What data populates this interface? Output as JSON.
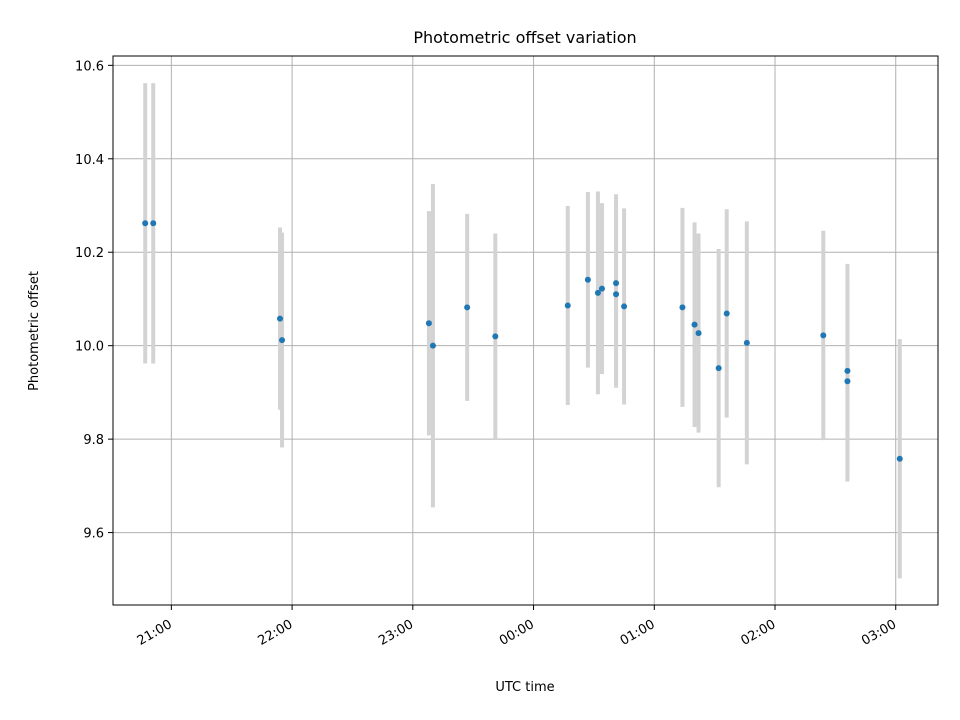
{
  "chart_data": {
    "type": "scatter",
    "title": "Photometric offset variation",
    "xlabel": "UTC time",
    "ylabel": "Photometric offset",
    "x_ticks": [
      "21:00",
      "22:00",
      "23:00",
      "00:00",
      "01:00",
      "02:00",
      "03:00"
    ],
    "y_ticks": [
      "9.6",
      "9.8",
      "10.0",
      "10.2",
      "10.4",
      "10.6"
    ],
    "xlim": [
      "20:31",
      "03:21"
    ],
    "ylim": [
      9.445,
      10.62
    ],
    "grid": true,
    "colors": {
      "points": "#1f77b4",
      "error_bars": "#d3d3d3"
    },
    "points": [
      {
        "x": "20:47",
        "y": 10.262,
        "err": 0.3
      },
      {
        "x": "20:51",
        "y": 10.262,
        "err": 0.3
      },
      {
        "x": "21:54",
        "y": 10.058,
        "err": 0.195
      },
      {
        "x": "21:55",
        "y": 10.012,
        "err": 0.23
      },
      {
        "x": "23:08",
        "y": 10.048,
        "err": 0.24
      },
      {
        "x": "23:10",
        "y": 10.0,
        "err": 0.346
      },
      {
        "x": "23:27",
        "y": 10.082,
        "err": 0.2
      },
      {
        "x": "23:41",
        "y": 10.02,
        "err": 0.22
      },
      {
        "x": "00:17",
        "y": 10.086,
        "err": 0.213
      },
      {
        "x": "00:27",
        "y": 10.141,
        "err": 0.188
      },
      {
        "x": "00:32",
        "y": 10.113,
        "err": 0.217
      },
      {
        "x": "00:34",
        "y": 10.122,
        "err": 0.183
      },
      {
        "x": "00:41",
        "y": 10.134,
        "err": 0.19
      },
      {
        "x": "00:41",
        "y": 10.11,
        "err": 0.2
      },
      {
        "x": "00:45",
        "y": 10.084,
        "err": 0.21
      },
      {
        "x": "01:14",
        "y": 10.082,
        "err": 0.213
      },
      {
        "x": "01:20",
        "y": 10.045,
        "err": 0.219
      },
      {
        "x": "01:22",
        "y": 10.027,
        "err": 0.213
      },
      {
        "x": "01:32",
        "y": 9.952,
        "err": 0.255
      },
      {
        "x": "01:36",
        "y": 10.069,
        "err": 0.223
      },
      {
        "x": "01:46",
        "y": 10.006,
        "err": 0.26
      },
      {
        "x": "02:24",
        "y": 10.022,
        "err": 0.224
      },
      {
        "x": "02:36",
        "y": 9.946,
        "err": 0.229
      },
      {
        "x": "02:36",
        "y": 9.924,
        "err": 0.215
      },
      {
        "x": "03:02",
        "y": 9.758,
        "err": 0.256
      }
    ]
  }
}
